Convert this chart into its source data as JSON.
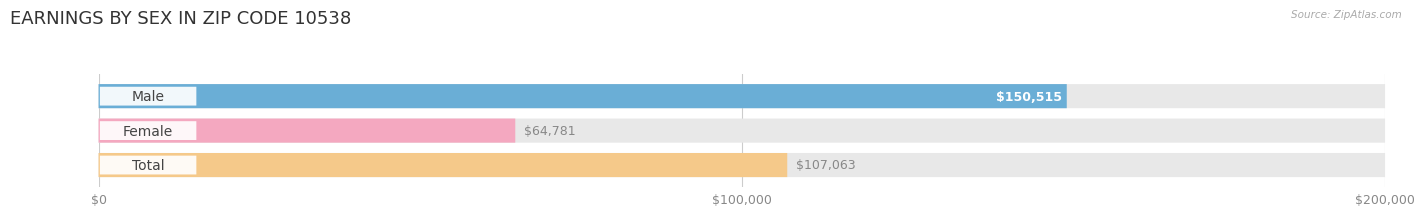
{
  "title": "EARNINGS BY SEX IN ZIP CODE 10538",
  "source": "Source: ZipAtlas.com",
  "categories": [
    "Male",
    "Female",
    "Total"
  ],
  "values": [
    150515,
    64781,
    107063
  ],
  "bar_colors": [
    "#6aaed6",
    "#f4a8c0",
    "#f5c98a"
  ],
  "track_color": "#e8e8e8",
  "label_inside": [
    true,
    false,
    false
  ],
  "xlim": [
    0,
    200000
  ],
  "xticks": [
    0,
    100000,
    200000
  ],
  "xtick_labels": [
    "$0",
    "$100,000",
    "$200,000"
  ],
  "bar_height": 0.7,
  "background_color": "#ffffff",
  "title_fontsize": 13,
  "tick_fontsize": 9,
  "value_fontsize": 9,
  "category_fontsize": 10
}
